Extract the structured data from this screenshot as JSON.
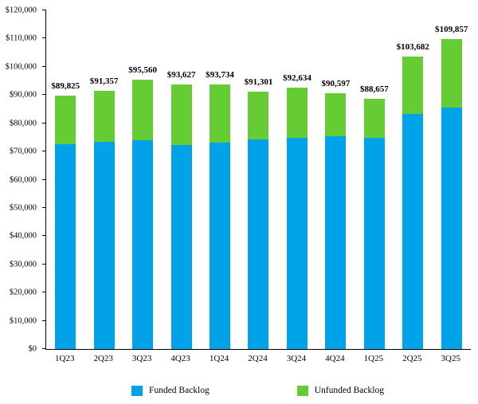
{
  "chart_data": {
    "type": "bar",
    "stacked": true,
    "title": "",
    "xlabel": "",
    "ylabel": "",
    "ylim": [
      0,
      120000
    ],
    "ytick_step": 10000,
    "ytick_labels": [
      "$0",
      "$10,000",
      "$20,000",
      "$30,000",
      "$40,000",
      "$50,000",
      "$60,000",
      "$70,000",
      "$80,000",
      "$90,000",
      "$100,000",
      "$110,000",
      "$120,000"
    ],
    "categories": [
      "1Q23",
      "2Q23",
      "3Q23",
      "4Q23",
      "1Q24",
      "2Q24",
      "3Q24",
      "4Q24",
      "1Q25",
      "2Q25",
      "3Q25"
    ],
    "series": [
      {
        "name": "Funded Backlog",
        "color": "#00A2E8",
        "values": [
          72500,
          73300,
          74000,
          72300,
          73000,
          74300,
          74900,
          75300,
          74900,
          83400,
          85600
        ]
      },
      {
        "name": "Unfunded Backlog",
        "color": "#66CC33",
        "values": [
          17325,
          18057,
          21560,
          21327,
          20734,
          17001,
          17734,
          15297,
          13757,
          20282,
          24257
        ]
      }
    ],
    "totals": [
      89825,
      91357,
      95560,
      93627,
      93734,
      91301,
      92634,
      90597,
      88657,
      103682,
      109857
    ],
    "total_labels": [
      "$89,825",
      "$91,357",
      "$95,560",
      "$93,627",
      "$93,734",
      "$91,301",
      "$92,634",
      "$90,597",
      "$88,657",
      "$103,682",
      "$109,857"
    ],
    "legend": [
      "Funded Backlog",
      "Unfunded Backlog"
    ],
    "legend_position": "bottom",
    "grid": false
  }
}
